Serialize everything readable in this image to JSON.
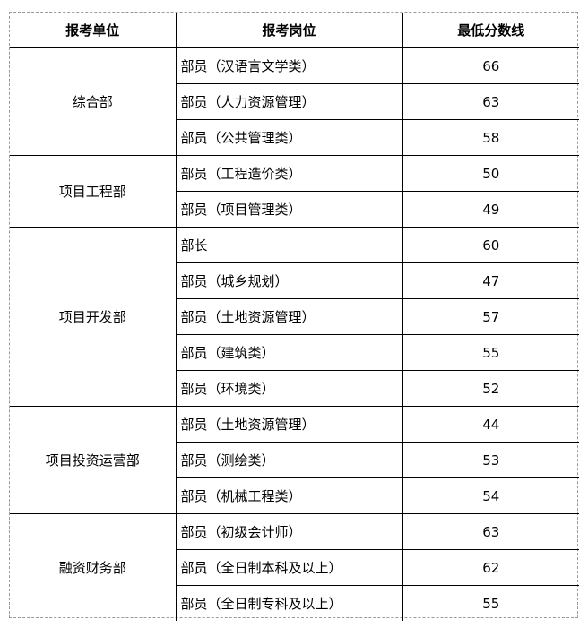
{
  "table": {
    "headers": [
      "报考单位",
      "报考岗位",
      "最低分数线"
    ],
    "groups": [
      {
        "unit": "综合部",
        "rows": [
          {
            "position": "部员（汉语言文学类）",
            "score": "66"
          },
          {
            "position": "部员（人力资源管理）",
            "score": "63"
          },
          {
            "position": "部员（公共管理类）",
            "score": "58"
          }
        ]
      },
      {
        "unit": "项目工程部",
        "rows": [
          {
            "position": "部员（工程造价类）",
            "score": "50"
          },
          {
            "position": "部员（项目管理类）",
            "score": "49"
          }
        ]
      },
      {
        "unit": "项目开发部",
        "rows": [
          {
            "position": "部长",
            "score": "60"
          },
          {
            "position": "部员（城乡规划）",
            "score": "47"
          },
          {
            "position": "部员（土地资源管理）",
            "score": "57"
          },
          {
            "position": "部员（建筑类）",
            "score": "55"
          },
          {
            "position": "部员（环境类）",
            "score": "52"
          }
        ]
      },
      {
        "unit": "项目投资运营部",
        "rows": [
          {
            "position": "部员（土地资源管理）",
            "score": "44"
          },
          {
            "position": "部员（测绘类）",
            "score": "53"
          },
          {
            "position": "部员（机械工程类）",
            "score": "54"
          }
        ]
      },
      {
        "unit": "融资财务部",
        "rows": [
          {
            "position": "部员（初级会计师）",
            "score": "63"
          },
          {
            "position": "部员（全日制本科及以上）",
            "score": "62"
          },
          {
            "position": "部员（全日制专科及以上）",
            "score": "55"
          }
        ]
      }
    ],
    "colors": {
      "border_inner": "#000000",
      "border_outer": "#9a9a9a",
      "text": "#000000",
      "background": "#ffffff"
    }
  }
}
